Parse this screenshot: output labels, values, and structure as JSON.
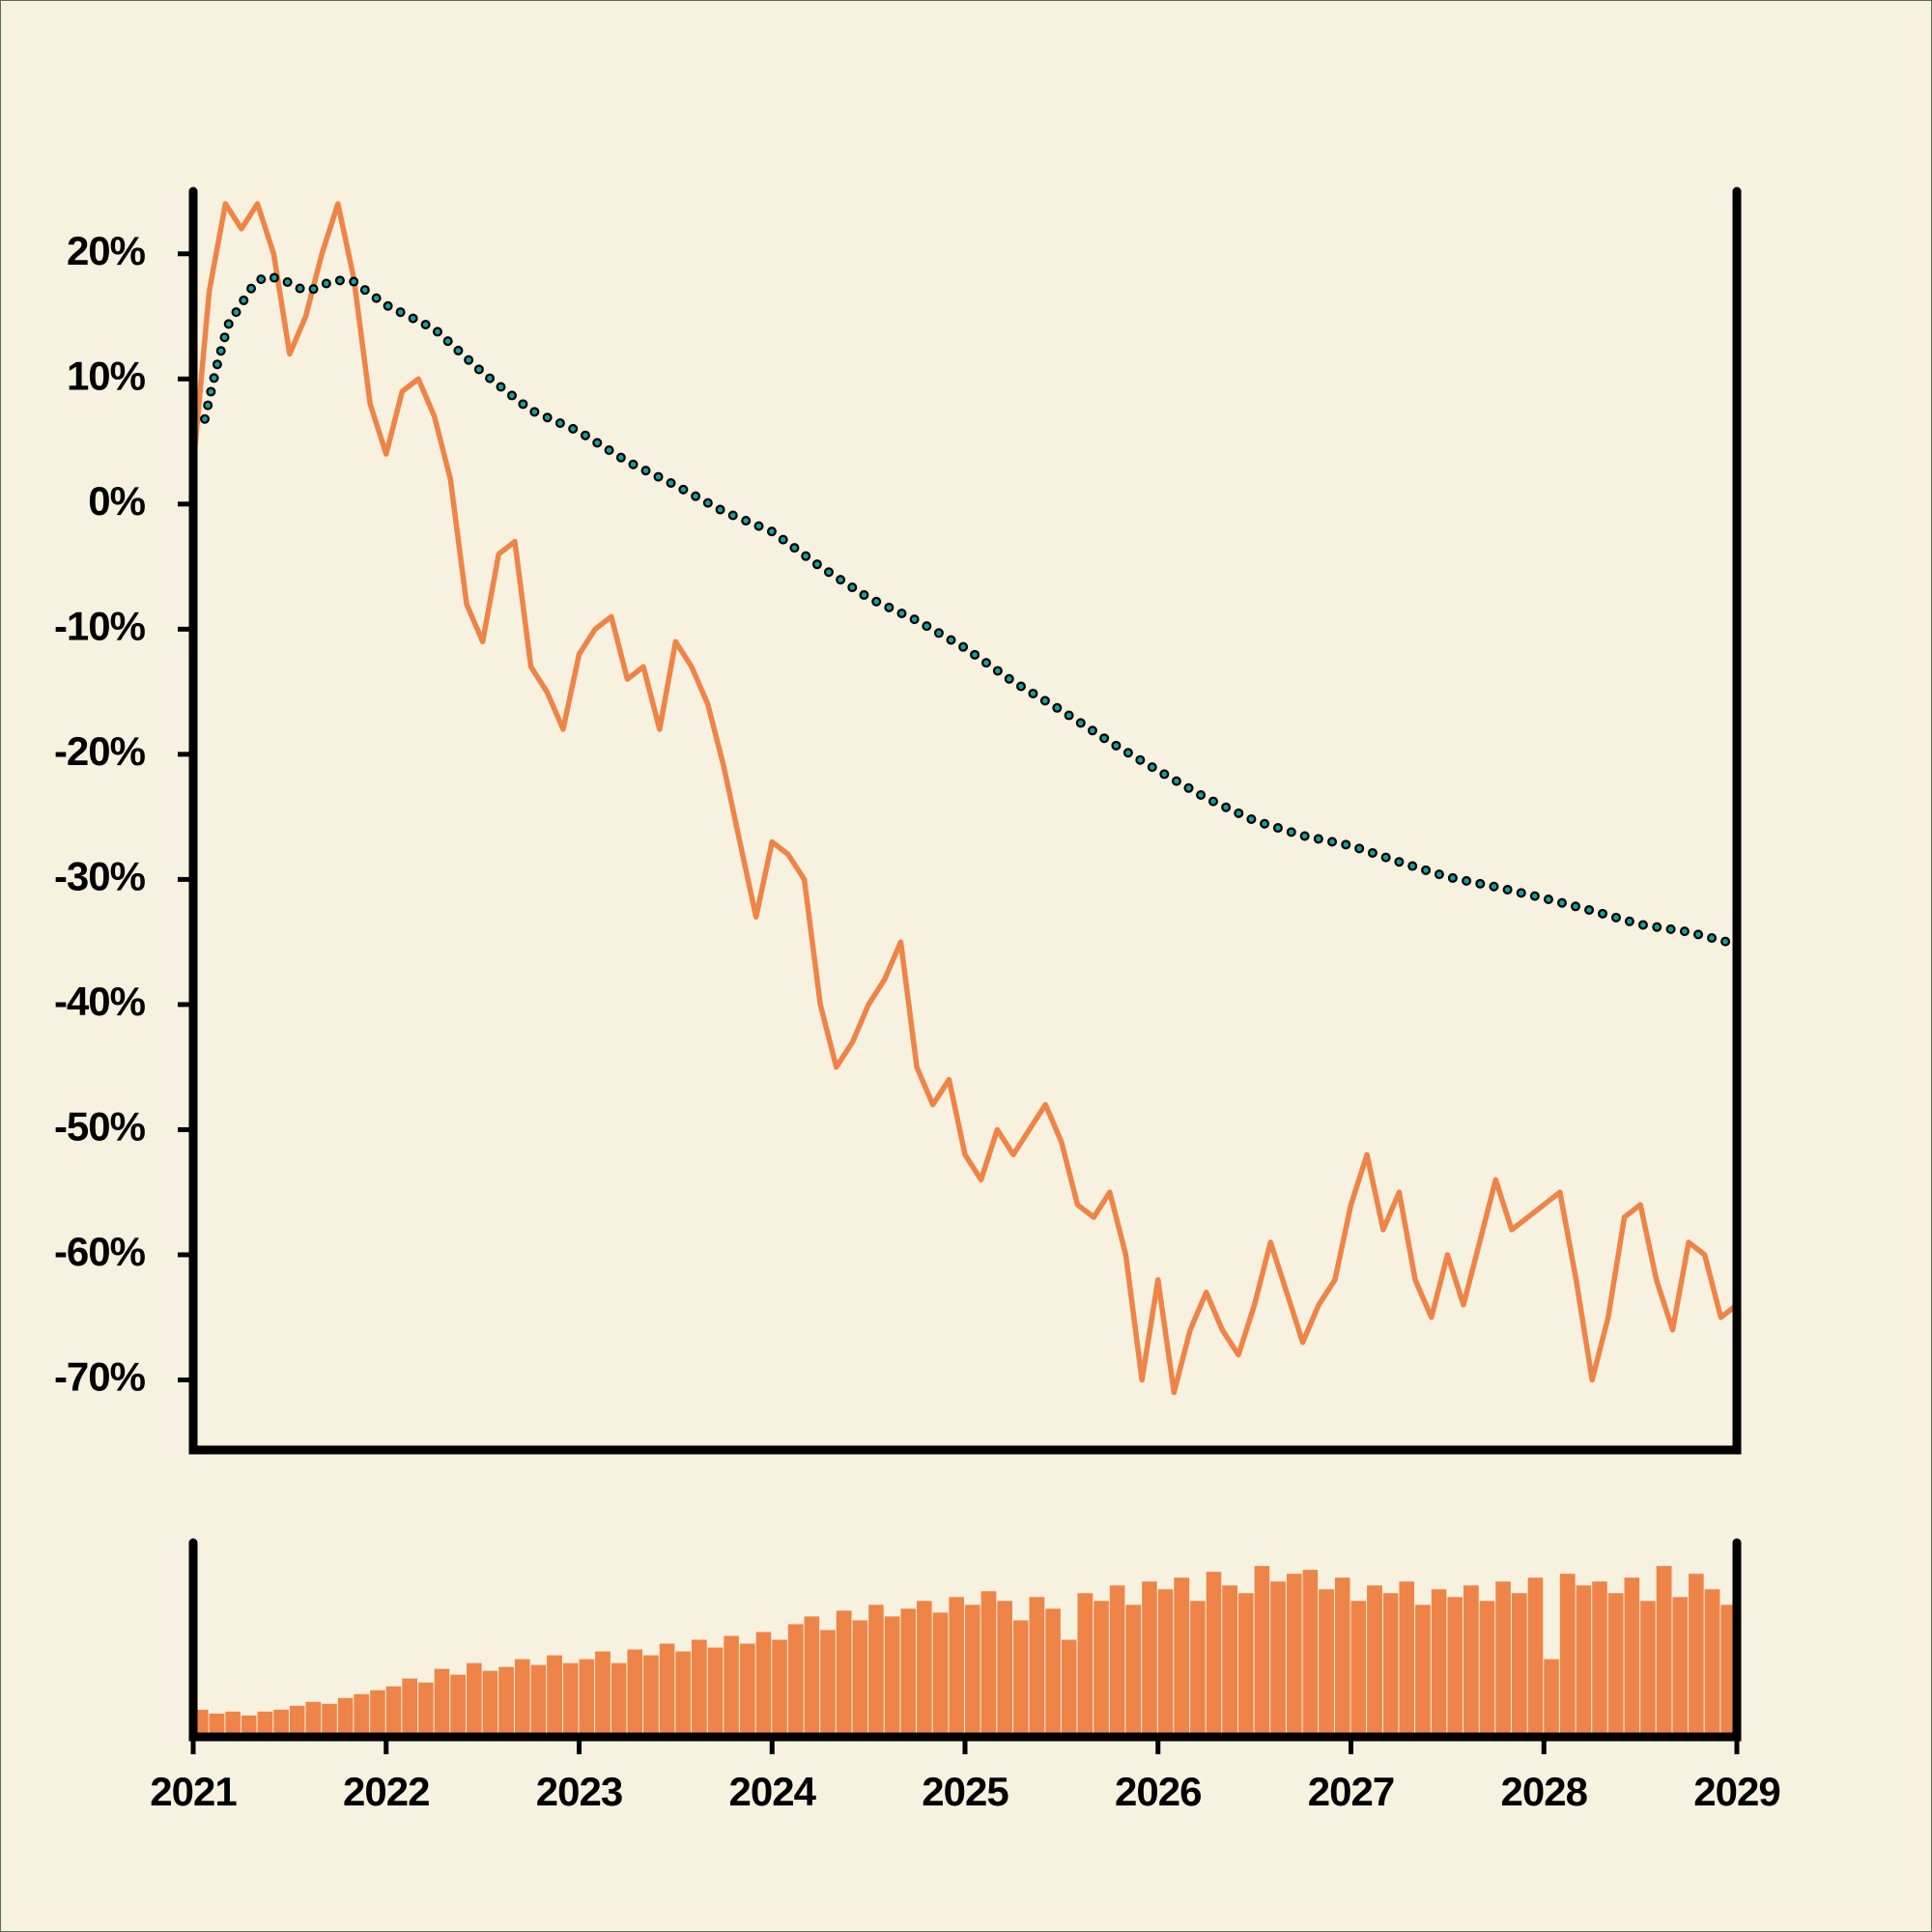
{
  "chart_data": [
    {
      "type": "line",
      "xlim": [
        2021,
        2029
      ],
      "ylim": [
        -75.6,
        25
      ],
      "yticks": [
        {
          "value": 20,
          "label": "20%"
        },
        {
          "value": 10,
          "label": "10%"
        },
        {
          "value": 0,
          "label": "0%"
        },
        {
          "value": -10,
          "label": "-10%"
        },
        {
          "value": -20,
          "label": "-20%"
        },
        {
          "value": -30,
          "label": "-30%"
        },
        {
          "value": -40,
          "label": "-40%"
        },
        {
          "value": -50,
          "label": "-50%"
        },
        {
          "value": -60,
          "label": "-60%"
        },
        {
          "value": -70,
          "label": "-70%"
        }
      ],
      "series": [
        {
          "color": "#ee8447",
          "style": "solid",
          "x": [
            2021,
            2021.083,
            2021.167,
            2021.25,
            2021.333,
            2021.417,
            2021.5,
            2021.583,
            2021.667,
            2021.75,
            2021.833,
            2021.917,
            2022,
            2022.083,
            2022.167,
            2022.25,
            2022.333,
            2022.417,
            2022.5,
            2022.583,
            2022.667,
            2022.75,
            2022.833,
            2022.917,
            2023,
            2023.083,
            2023.167,
            2023.25,
            2023.333,
            2023.417,
            2023.5,
            2023.583,
            2023.667,
            2023.75,
            2023.833,
            2023.917,
            2024,
            2024.083,
            2024.167,
            2024.25,
            2024.333,
            2024.417,
            2024.5,
            2024.583,
            2024.667,
            2024.75,
            2024.833,
            2024.917,
            2025,
            2025.083,
            2025.167,
            2025.25,
            2025.333,
            2025.417,
            2025.5,
            2025.583,
            2025.667,
            2025.75,
            2025.833,
            2025.917,
            2026,
            2026.083,
            2026.167,
            2026.25,
            2026.333,
            2026.417,
            2026.5,
            2026.583,
            2026.667,
            2026.75,
            2026.833,
            2026.917,
            2027,
            2027.083,
            2027.167,
            2027.25,
            2027.333,
            2027.417,
            2027.5,
            2027.583,
            2027.667,
            2027.75,
            2027.833,
            2027.917,
            2028,
            2028.083,
            2028.167,
            2028.25,
            2028.333,
            2028.417,
            2028.5,
            2028.583,
            2028.667,
            2028.75,
            2028.833,
            2028.917,
            2029
          ],
          "values": [
            3,
            17,
            24,
            22,
            24,
            20,
            12,
            15,
            20,
            24,
            18,
            8,
            4,
            9,
            10,
            7,
            2,
            -8,
            -11,
            -4,
            -3,
            -13,
            -15,
            -18,
            -12,
            -10,
            -9,
            -14,
            -13,
            -18,
            -11,
            -13,
            -16,
            -21,
            -27,
            -33,
            -27,
            -28,
            -30,
            -40,
            -45,
            -43,
            -40,
            -38,
            -35,
            -45,
            -48,
            -46,
            -52,
            -54,
            -50,
            -52,
            -50,
            -48,
            -51,
            -56,
            -57,
            -55,
            -60,
            -70,
            -62,
            -71,
            -66,
            -63,
            -66,
            -68,
            -64,
            -59,
            -63,
            -67,
            -64,
            -62,
            -56,
            -52,
            -58,
            -55,
            -62,
            -65,
            -60,
            -64,
            -59,
            -54,
            -58,
            -57,
            -56,
            -55,
            -62,
            -70,
            -65,
            -57,
            -56,
            -62,
            -66,
            -59,
            -60,
            -65,
            -64
          ]
        },
        {
          "color": "#1a9e9e",
          "style": "dotted",
          "x": [
            2021.06,
            2021.12,
            2021.18,
            2021.25,
            2021.32,
            2021.38,
            2021.45,
            2021.51,
            2021.57,
            2021.63,
            2021.7,
            2021.77,
            2021.83,
            2021.9,
            2022,
            2022.25,
            2022.5,
            2022.75,
            2023,
            2023.25,
            2023.5,
            2023.75,
            2024,
            2024.25,
            2024.5,
            2024.75,
            2025,
            2025.25,
            2025.5,
            2025.75,
            2026,
            2026.25,
            2026.5,
            2026.75,
            2027,
            2027.25,
            2027.5,
            2027.75,
            2028,
            2028.25,
            2028.5,
            2028.75,
            2029
          ],
          "values": [
            6.8,
            10.9,
            14.3,
            16.0,
            17.7,
            18.2,
            18.0,
            17.6,
            17.1,
            17.2,
            17.7,
            17.9,
            17.8,
            17.0,
            15.9,
            14.0,
            10.5,
            7.5,
            5.8,
            3.4,
            1.5,
            -0.6,
            -2.2,
            -5.0,
            -7.5,
            -9.3,
            -11.5,
            -14.2,
            -16.5,
            -19.0,
            -21.3,
            -23.5,
            -25.3,
            -26.5,
            -27.3,
            -28.6,
            -29.8,
            -30.6,
            -31.5,
            -32.5,
            -33.6,
            -34.2,
            -35.2
          ]
        }
      ]
    },
    {
      "type": "bar",
      "color": "#ee8447",
      "xlim": [
        2021,
        2029
      ],
      "ylim": [
        0,
        100
      ],
      "xticks": [
        2021,
        2022,
        2023,
        2024,
        2025,
        2026,
        2027,
        2028,
        2029
      ],
      "x": [
        2021,
        2021.083,
        2021.167,
        2021.25,
        2021.333,
        2021.417,
        2021.5,
        2021.583,
        2021.667,
        2021.75,
        2021.833,
        2021.917,
        2022,
        2022.083,
        2022.167,
        2022.25,
        2022.333,
        2022.417,
        2022.5,
        2022.583,
        2022.667,
        2022.75,
        2022.833,
        2022.917,
        2023,
        2023.083,
        2023.167,
        2023.25,
        2023.333,
        2023.417,
        2023.5,
        2023.583,
        2023.667,
        2023.75,
        2023.833,
        2023.917,
        2024,
        2024.083,
        2024.167,
        2024.25,
        2024.333,
        2024.417,
        2024.5,
        2024.583,
        2024.667,
        2024.75,
        2024.833,
        2024.917,
        2025,
        2025.083,
        2025.167,
        2025.25,
        2025.333,
        2025.417,
        2025.5,
        2025.583,
        2025.667,
        2025.75,
        2025.833,
        2025.917,
        2026,
        2026.083,
        2026.167,
        2026.25,
        2026.333,
        2026.417,
        2026.5,
        2026.583,
        2026.667,
        2026.75,
        2026.833,
        2026.917,
        2027,
        2027.083,
        2027.167,
        2027.25,
        2027.333,
        2027.417,
        2027.5,
        2027.583,
        2027.667,
        2027.75,
        2027.833,
        2027.917,
        2028,
        2028.083,
        2028.167,
        2028.25,
        2028.333,
        2028.417,
        2028.5,
        2028.583,
        2028.667,
        2028.75,
        2028.833,
        2028.917
      ],
      "values": [
        14,
        12,
        13,
        11,
        13,
        14,
        16,
        18,
        17,
        20,
        22,
        24,
        26,
        30,
        28,
        35,
        32,
        38,
        34,
        36,
        40,
        37,
        42,
        38,
        40,
        44,
        38,
        45,
        42,
        48,
        44,
        50,
        46,
        52,
        48,
        54,
        50,
        58,
        62,
        55,
        65,
        60,
        68,
        62,
        66,
        70,
        64,
        72,
        68,
        75,
        70,
        60,
        72,
        66,
        50,
        74,
        70,
        78,
        68,
        80,
        76,
        82,
        70,
        85,
        78,
        74,
        88,
        80,
        84,
        86,
        76,
        82,
        70,
        78,
        74,
        80,
        68,
        76,
        72,
        78,
        70,
        80,
        74,
        82,
        40,
        84,
        78,
        80,
        74,
        82,
        70,
        88,
        72,
        84,
        76,
        68
      ]
    }
  ]
}
